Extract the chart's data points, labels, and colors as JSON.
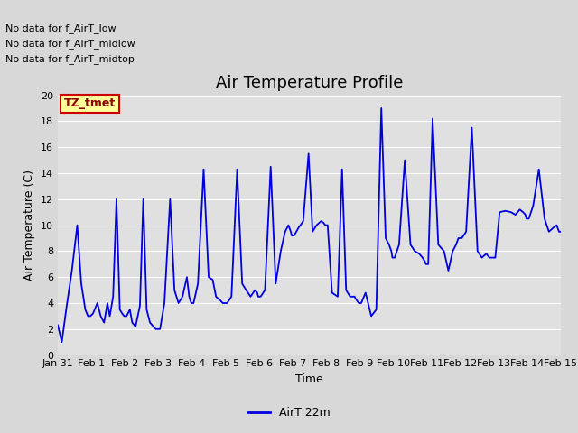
{
  "title": "Air Temperature Profile",
  "xlabel": "Time",
  "ylabel": "Air Temperature (C)",
  "legend_label": "AirT 22m",
  "annotations": [
    "No data for f_AirT_low",
    "No data for f_AirT_midlow",
    "No data for f_AirT_midtop"
  ],
  "legend_box_label": "TZ_tmet",
  "fig_bg_color": "#d8d8d8",
  "plot_bg_color": "#e0e0e0",
  "line_color": "#0000dd",
  "ylim": [
    0,
    20
  ],
  "yticks": [
    0,
    2,
    4,
    6,
    8,
    10,
    12,
    14,
    16,
    18,
    20
  ],
  "xtick_labels": [
    "Jan 31",
    "Feb 1",
    "Feb 2",
    "Feb 3",
    "Feb 4",
    "Feb 5",
    "Feb 6",
    "Feb 7",
    "Feb 8",
    "Feb 9",
    "Feb 10",
    "Feb 11",
    "Feb 12",
    "Feb 13",
    "Feb 14",
    "Feb 15"
  ],
  "grid_color": "#ffffff",
  "title_fontsize": 13,
  "axis_label_fontsize": 9,
  "tick_fontsize": 8,
  "annot_fontsize": 8,
  "key_times": [
    0.0,
    0.12,
    0.25,
    0.42,
    0.58,
    0.7,
    0.82,
    0.9,
    0.97,
    1.05,
    1.18,
    1.28,
    1.38,
    1.48,
    1.55,
    1.65,
    1.75,
    1.85,
    1.92,
    1.98,
    2.05,
    2.15,
    2.22,
    2.32,
    2.45,
    2.55,
    2.65,
    2.75,
    2.85,
    2.92,
    2.98,
    3.05,
    3.18,
    3.35,
    3.48,
    3.6,
    3.72,
    3.85,
    3.92,
    3.98,
    4.05,
    4.18,
    4.35,
    4.5,
    4.62,
    4.72,
    4.85,
    4.92,
    4.98,
    5.05,
    5.18,
    5.35,
    5.5,
    5.62,
    5.75,
    5.88,
    5.95,
    5.98,
    6.05,
    6.18,
    6.35,
    6.5,
    6.65,
    6.78,
    6.88,
    6.95,
    6.98,
    7.05,
    7.18,
    7.32,
    7.48,
    7.6,
    7.72,
    7.85,
    7.92,
    7.98,
    8.05,
    8.18,
    8.35,
    8.48,
    8.6,
    8.72,
    8.85,
    8.92,
    8.98,
    9.05,
    9.18,
    9.35,
    9.5,
    9.65,
    9.78,
    9.88,
    9.95,
    9.98,
    10.05,
    10.18,
    10.35,
    10.52,
    10.65,
    10.78,
    10.88,
    10.95,
    10.98,
    11.05,
    11.18,
    11.35,
    11.52,
    11.65,
    11.78,
    11.88,
    11.95,
    11.98,
    12.05,
    12.18,
    12.35,
    12.52,
    12.65,
    12.78,
    12.88,
    12.95,
    12.98,
    13.05,
    13.18,
    13.35,
    13.52,
    13.65,
    13.78,
    13.88,
    13.95,
    13.98,
    14.05,
    14.18,
    14.35,
    14.52,
    14.65,
    14.78,
    14.88,
    14.95,
    15.0
  ],
  "key_temps": [
    2.3,
    1.0,
    3.5,
    6.5,
    10.0,
    5.5,
    3.5,
    3.0,
    3.0,
    3.2,
    4.0,
    3.0,
    2.5,
    4.0,
    3.0,
    4.5,
    12.0,
    3.5,
    3.2,
    3.0,
    3.0,
    3.5,
    2.5,
    2.2,
    3.8,
    12.0,
    3.5,
    2.5,
    2.2,
    2.0,
    2.0,
    2.0,
    4.0,
    12.0,
    5.0,
    4.0,
    4.5,
    6.0,
    4.5,
    4.0,
    4.0,
    5.5,
    14.3,
    6.0,
    5.8,
    4.5,
    4.2,
    4.0,
    4.0,
    4.0,
    4.5,
    14.3,
    5.5,
    5.0,
    4.5,
    5.0,
    4.8,
    4.5,
    4.5,
    5.0,
    14.5,
    5.5,
    8.0,
    9.5,
    10.0,
    9.5,
    9.2,
    9.2,
    9.8,
    10.3,
    15.5,
    9.5,
    10.0,
    10.3,
    10.2,
    10.0,
    10.0,
    4.8,
    4.5,
    14.3,
    5.0,
    4.5,
    4.5,
    4.2,
    4.0,
    4.0,
    4.8,
    3.0,
    3.5,
    19.0,
    9.0,
    8.5,
    8.0,
    7.5,
    7.5,
    8.5,
    15.0,
    8.5,
    8.0,
    7.8,
    7.5,
    7.2,
    7.0,
    7.0,
    18.2,
    8.5,
    8.0,
    6.5,
    8.0,
    8.5,
    9.0,
    9.0,
    9.0,
    9.5,
    17.5,
    8.0,
    7.5,
    7.8,
    7.5,
    7.5,
    7.5,
    7.5,
    11.0,
    11.1,
    11.0,
    10.8,
    11.2,
    11.0,
    10.8,
    10.5,
    10.5,
    11.5,
    14.3,
    10.5,
    9.5,
    9.8,
    10.0,
    9.5,
    9.5
  ]
}
